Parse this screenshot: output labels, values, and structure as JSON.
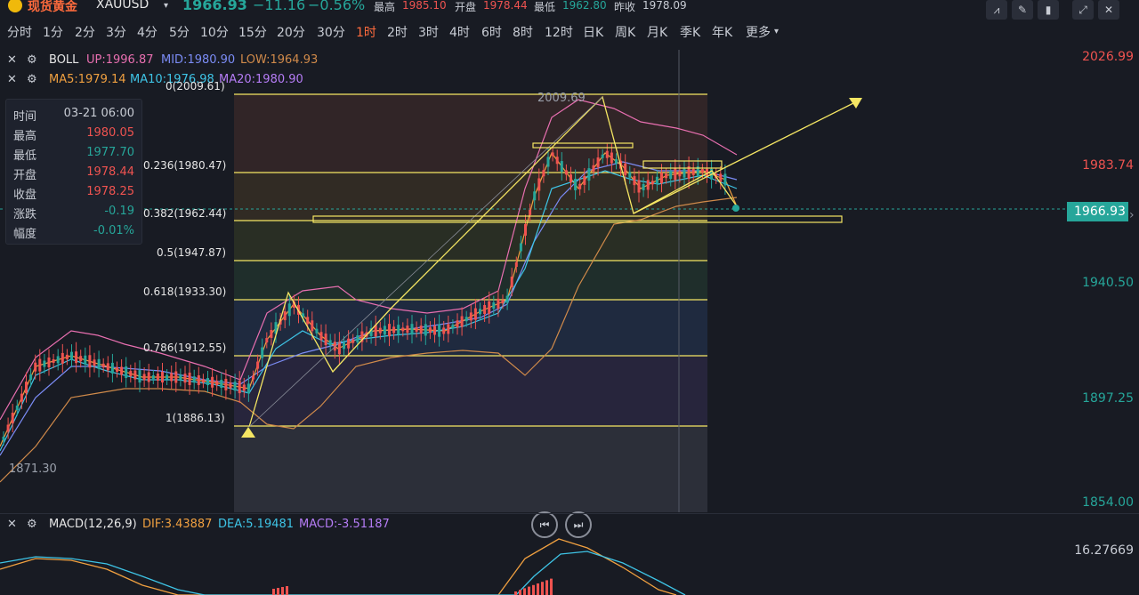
{
  "header": {
    "name": "现货黄金",
    "symbol": "XAUUSD",
    "price": "1966.93",
    "change": "−11.16",
    "change_pct": "−0.56%",
    "high_label": "最高",
    "high": "1985.10",
    "open_label": "开盘",
    "open": "1978.44",
    "low_label": "最低",
    "low": "1962.80",
    "prevclose_label": "昨收",
    "prevclose": "1978.09"
  },
  "timeframes": [
    "分时",
    "1分",
    "2分",
    "3分",
    "4分",
    "5分",
    "10分",
    "15分",
    "20分",
    "30分",
    "1时",
    "2时",
    "3时",
    "4时",
    "6时",
    "8时",
    "12时",
    "日K",
    "周K",
    "月K",
    "季K",
    "年K",
    "更多"
  ],
  "active_timeframe": "1时",
  "boll": {
    "name": "BOLL",
    "up": "UP:1996.87",
    "mid": "MID:1980.90",
    "low": "LOW:1964.93"
  },
  "ma": {
    "ma5": "MA5:1979.14",
    "ma10": "MA10:1976.98",
    "ma20": "MA20:1980.90"
  },
  "infobox": [
    {
      "k": "时间",
      "v": "03-21 06:00",
      "c": "#c8ccd4"
    },
    {
      "k": "最高",
      "v": "1980.05",
      "c": "#ef5350"
    },
    {
      "k": "最低",
      "v": "1977.70",
      "c": "#26a69a"
    },
    {
      "k": "开盘",
      "v": "1978.44",
      "c": "#ef5350"
    },
    {
      "k": "收盘",
      "v": "1978.25",
      "c": "#ef5350"
    },
    {
      "k": "涨跌",
      "v": "-0.19",
      "c": "#26a69a"
    },
    {
      "k": "幅度",
      "v": "-0.01%",
      "c": "#26a69a"
    }
  ],
  "fib": [
    "0(2009.61)",
    "0.236(1980.47)",
    "0.382(1962.44)",
    "0.5(1947.87)",
    "0.618(1933.30)",
    "0.786(1912.55)",
    "1(1886.13)"
  ],
  "annotations": {
    "peak": "2009.69",
    "trough": "1871.30"
  },
  "price_axis": [
    "2026.99",
    "1983.74",
    "1940.50",
    "1897.25",
    "1854.00"
  ],
  "current_price_tag": "1966.93",
  "macd": {
    "name": "MACD(12,26,9)",
    "dif": "DIF:3.43887",
    "dea": "DEA:5.19481",
    "macd": "MACD:-3.51187",
    "axis_top": "16.27669"
  },
  "colors": {
    "up": "#ef5350",
    "down": "#26a69a",
    "accent": "#ff6b3d",
    "fib_line": "#f5e663"
  }
}
